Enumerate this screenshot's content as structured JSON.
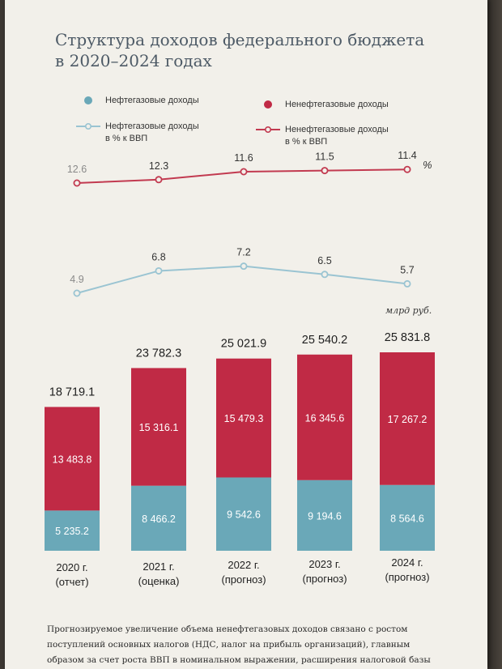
{
  "title_line1": "Структура доходов федерального бюджета",
  "title_line2": "в 2020–2024 годах",
  "legend": {
    "oil_gas": "Нефтегазовые доходы",
    "non_oil_gas": "Ненефтегазовые доходы",
    "oil_gas_pct_line1": "Нефтегазовые доходы",
    "oil_gas_pct_line2": "в % к ВВП",
    "non_oil_gas_pct_line1": "Ненефтегазовые доходы",
    "non_oil_gas_pct_line2": "в % к ВВП"
  },
  "colors": {
    "oil_gas": "#6aa8b8",
    "non_oil_gas": "#c02a45",
    "oil_gas_line": "#9ac4d2",
    "non_oil_gas_line": "#c23a50"
  },
  "unit_pct": "%",
  "unit_bln": "млрд руб.",
  "chart_data": [
    {
      "type": "line",
      "x": [
        "2020 г. (отчет)",
        "2021 г. (оценка)",
        "2022 г. (прогноз)",
        "2023 г. (прогноз)",
        "2024 г. (прогноз)"
      ],
      "series": [
        {
          "name": "Ненефтегазовые доходы в % к ВВП",
          "values": [
            12.6,
            12.3,
            11.6,
            11.5,
            11.4
          ],
          "labels": [
            "12.6",
            "12.3",
            "11.6",
            "11.5",
            "11.4"
          ]
        },
        {
          "name": "Нефтегазовые доходы в % к ВВП",
          "values": [
            4.9,
            6.8,
            7.2,
            6.5,
            5.7
          ],
          "labels": [
            "4.9",
            "6.8",
            "7.2",
            "6.5",
            "5.7"
          ]
        }
      ],
      "ylabel": "%"
    },
    {
      "type": "bar",
      "stacked": true,
      "categories": [
        [
          "2020 г.",
          "(отчет)"
        ],
        [
          "2021 г.",
          "(оценка)"
        ],
        [
          "2022 г.",
          "(прогноз)"
        ],
        [
          "2023 г.",
          "(прогноз)"
        ],
        [
          "2024 г.",
          "(прогноз)"
        ]
      ],
      "series": [
        {
          "name": "Нефтегазовые доходы",
          "values": [
            5235.2,
            8466.2,
            9542.6,
            9194.6,
            8564.6
          ],
          "labels": [
            "5 235.2",
            "8 466.2",
            "9 542.6",
            "9 194.6",
            "8 564.6"
          ]
        },
        {
          "name": "Ненефтегазовые доходы",
          "values": [
            13483.8,
            15316.1,
            15479.3,
            16345.6,
            17267.2
          ],
          "labels": [
            "13 483.8",
            "15 316.1",
            "15 479.3",
            "16 345.6",
            "17 267.2"
          ]
        }
      ],
      "totals": [
        18719.1,
        23782.3,
        25021.9,
        25540.2,
        25831.8
      ],
      "total_labels": [
        "18 719.1",
        "23 782.3",
        "25 021.9",
        "25 540.2",
        "25 831.8"
      ],
      "ylabel": "млрд руб."
    }
  ],
  "footer_lines": [
    "Прогнозируемое увеличение объема ненефтегазовых доходов связано с ростом",
    "поступлений основных налогов (НДС, налог на прибыль организаций), главным",
    "образом за счет роста ВВП в номинальном выражении, расширения налоговой базы"
  ]
}
